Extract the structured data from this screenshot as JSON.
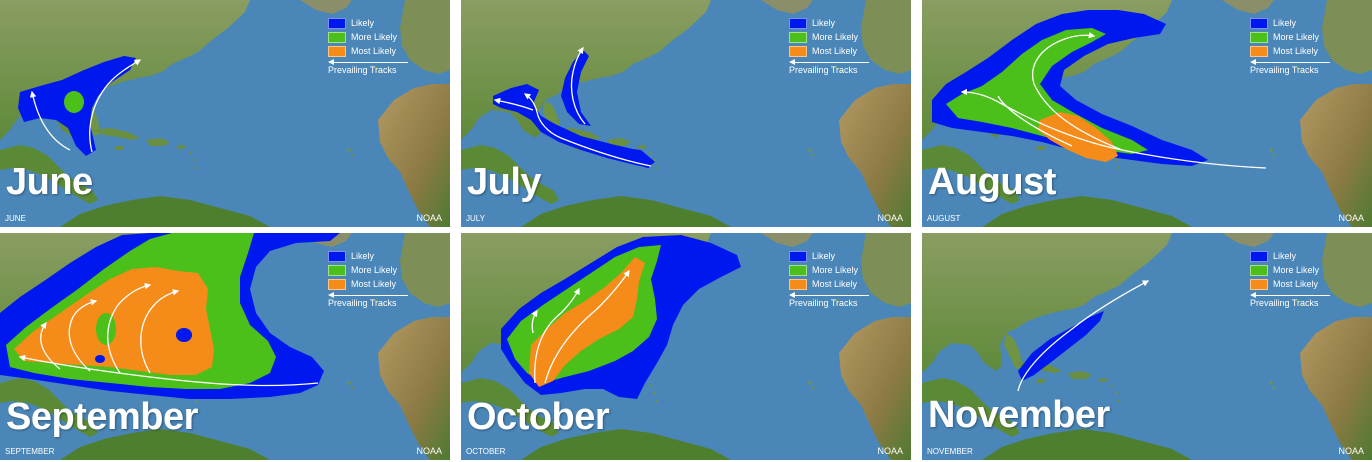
{
  "legend": {
    "likely": "Likely",
    "more_likely": "More Likely",
    "most_likely": "Most Likely",
    "tracks": "Prevailing Tracks"
  },
  "colors": {
    "ocean": "#4a86b8",
    "land": "#7e9a52",
    "likely": "#0018f0",
    "more_likely": "#4cc01a",
    "most_likely": "#f58b18",
    "track": "#ffffff"
  },
  "panels": [
    {
      "title": "June",
      "caption": "JUNE",
      "credit": "NOAA"
    },
    {
      "title": "July",
      "caption": "JULY",
      "credit": "NOAA"
    },
    {
      "title": "August",
      "caption": "AUGUST",
      "credit": "NOAA"
    },
    {
      "title": "September",
      "caption": "SEPTEMBER",
      "credit": "NOAA"
    },
    {
      "title": "October",
      "caption": "OCTOBER",
      "credit": "NOAA"
    },
    {
      "title": "November",
      "caption": "NOVEMBER",
      "credit": "NOAA"
    }
  ]
}
